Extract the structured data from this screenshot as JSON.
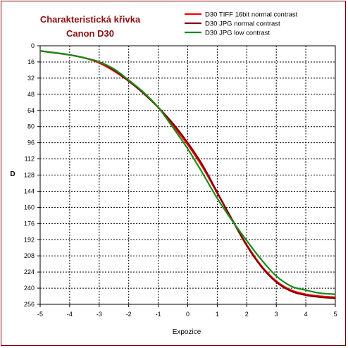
{
  "chart_data": {
    "type": "line",
    "title": "Charakteristická křivka",
    "subtitle": "Canon D30",
    "xlabel": "Expozice",
    "ylabel": "D",
    "xlim": [
      -5,
      5
    ],
    "ylim": [
      0,
      256
    ],
    "y_inverted": true,
    "grid": true,
    "x_ticks": [
      "-5",
      "-4",
      "-3",
      "-2",
      "-1",
      "0",
      "1",
      "2",
      "3",
      "4",
      "5"
    ],
    "y_ticks": [
      "0",
      "16",
      "32",
      "48",
      "64",
      "80",
      "96",
      "112",
      "128",
      "144",
      "160",
      "176",
      "192",
      "208",
      "224",
      "240",
      "256"
    ],
    "legend_position": "top-right",
    "series": [
      {
        "name": "D30 TIFF 16bit normal contrast",
        "color": "#ff0000",
        "x": [
          -5,
          -4,
          -3.5,
          -3,
          -2.5,
          -2,
          -1.5,
          -1,
          -0.5,
          0,
          0.5,
          1,
          1.5,
          2,
          2.5,
          3,
          3.5,
          4,
          4.5,
          5
        ],
        "y": [
          5,
          9,
          12,
          17,
          25,
          35,
          47,
          61,
          79,
          98,
          120,
          146,
          172,
          197,
          218,
          233,
          242,
          246,
          248,
          249
        ]
      },
      {
        "name": "D30 JPG normal contrast",
        "color": "#800000",
        "x": [
          -5,
          -4,
          -3.5,
          -3,
          -2.5,
          -2,
          -1.5,
          -1,
          -0.5,
          0,
          0.5,
          1,
          1.5,
          2,
          2.5,
          3,
          3.5,
          4,
          4.5,
          5
        ],
        "y": [
          5,
          9,
          12,
          16,
          24,
          35,
          47,
          61,
          77,
          96,
          118,
          145,
          172,
          198,
          219,
          234,
          243,
          247,
          249,
          250
        ]
      },
      {
        "name": "D30 JPG low  contrast",
        "color": "#1a8c1a",
        "x": [
          -5,
          -4,
          -3.5,
          -3,
          -2.5,
          -2,
          -1.5,
          -1,
          -0.5,
          0,
          0.5,
          1,
          1.5,
          2,
          2.5,
          3,
          3.5,
          4,
          4.5,
          5
        ],
        "y": [
          5,
          9,
          12,
          16,
          23,
          34,
          46,
          61,
          81,
          102,
          126,
          151,
          173,
          193,
          212,
          228,
          238,
          242,
          245,
          246
        ]
      }
    ]
  }
}
